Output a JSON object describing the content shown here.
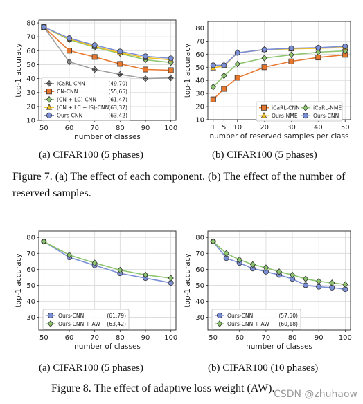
{
  "colors": {
    "icarl_cnn": "#a0a0a0",
    "cn_cnn": "#e8772e",
    "cn_lc": "#8cc56e",
    "cn_lc_is": "#f0c020",
    "ours": "#7b8fd6",
    "icarl_nme": "#8cc56e",
    "ours_nme": "#f0c020",
    "ours_aw": "#8cc56e"
  },
  "chart_data": [
    {
      "id": "a7",
      "type": "line",
      "xlabel": "number of classes",
      "ylabel": "top-1 accuracy",
      "x": [
        50,
        60,
        70,
        80,
        90,
        100
      ],
      "xticks": [
        "50",
        "60",
        "70",
        "80",
        "90",
        "100"
      ],
      "xlim": [
        48,
        102
      ],
      "ylim": [
        10,
        82
      ],
      "yticks": [
        10,
        20,
        30,
        40,
        50,
        60,
        70,
        80
      ],
      "grid": true,
      "legend_position": "bottom-left",
      "series": [
        {
          "name": "iCaRL-CNN",
          "score": "(49,70)",
          "color": "#a0a0a0",
          "marker": "plus-diamond",
          "values": [
            77,
            52,
            46.5,
            43,
            40,
            40.5
          ]
        },
        {
          "name": "CN-CNN",
          "score": "(55,65)",
          "color": "#e8772e",
          "marker": "square",
          "values": [
            77,
            60,
            55.5,
            50.5,
            46.5,
            46
          ]
        },
        {
          "name": "(CN + LC)-CNN",
          "score": "(61,47)",
          "color": "#8cc56e",
          "marker": "diamond",
          "values": [
            77,
            68,
            62.5,
            58,
            53.5,
            51.5
          ]
        },
        {
          "name": "(CN + LC + IS)-CNN",
          "score": "(63,37)",
          "color": "#f0c020",
          "marker": "triangle",
          "values": [
            77,
            68.5,
            63,
            58.5,
            55,
            53.5
          ]
        },
        {
          "name": "Ours-CNN",
          "score": "(63,42)",
          "color": "#7b8fd6",
          "marker": "circle",
          "values": [
            77,
            69,
            64,
            59.5,
            56,
            54.5
          ]
        }
      ]
    },
    {
      "id": "b7",
      "type": "line",
      "xlabel": "number of reserved samples per class",
      "ylabel": "top-1 accuracy",
      "x": [
        1,
        5,
        10,
        20,
        30,
        40,
        50
      ],
      "xticks": [
        "1",
        "5",
        "10",
        "20",
        "30",
        "40",
        "50"
      ],
      "xlim": [
        -1,
        52
      ],
      "ylim": [
        10,
        85
      ],
      "yticks": [
        10,
        20,
        30,
        40,
        50,
        60,
        70,
        80
      ],
      "grid": true,
      "legend_position": "bottom-right",
      "legend_columns": 2,
      "series": [
        {
          "name": "iCaRL-CNN",
          "color": "#e8772e",
          "marker": "square",
          "values": [
            25.5,
            33.5,
            42,
            50,
            54.5,
            57.5,
            59.5
          ]
        },
        {
          "name": "iCaRL-NME",
          "color": "#8cc56e",
          "marker": "diamond",
          "values": [
            35,
            43.5,
            52.5,
            57,
            59.5,
            61.5,
            62.5
          ]
        },
        {
          "name": "Ours-NME",
          "color": "#f0c020",
          "marker": "triangle",
          "values": [
            49.5,
            51,
            61,
            63.5,
            64,
            64.5,
            65
          ]
        },
        {
          "name": "Ours-CNN",
          "color": "#7b8fd6",
          "marker": "circle",
          "values": [
            51.5,
            51.5,
            61,
            63.5,
            64.5,
            65,
            66
          ]
        }
      ]
    },
    {
      "id": "a8",
      "type": "line",
      "xlabel": "number of classes",
      "ylabel": "top-1 accuracy",
      "x": [
        50,
        60,
        70,
        80,
        90,
        100
      ],
      "xticks": [
        "50",
        "60",
        "70",
        "80",
        "90",
        "100"
      ],
      "xlim": [
        48,
        102
      ],
      "ylim": [
        22,
        84
      ],
      "yticks": [
        30,
        40,
        50,
        60,
        70,
        80
      ],
      "grid": true,
      "legend_position": "bottom-left",
      "series": [
        {
          "name": "Ours-CNN",
          "score": "(61,79)",
          "color": "#7b8fd6",
          "marker": "circle",
          "values": [
            77.5,
            67.5,
            62.5,
            57.5,
            54.5,
            51.5
          ]
        },
        {
          "name": "Ours-CNN + AW",
          "score": "(63,42)",
          "color": "#8cc56e",
          "marker": "diamond",
          "values": [
            77.5,
            69,
            64,
            59.5,
            56.5,
            54.5
          ]
        }
      ]
    },
    {
      "id": "b8",
      "type": "line",
      "xlabel": "number of classes",
      "ylabel": "top-1 accuracy",
      "x": [
        50,
        55,
        60,
        65,
        70,
        75,
        80,
        85,
        90,
        95,
        100
      ],
      "xticks": [
        "50",
        "60",
        "70",
        "80",
        "90",
        "100"
      ],
      "xtick_values": [
        50,
        60,
        70,
        80,
        90,
        100
      ],
      "xlim": [
        48,
        102
      ],
      "ylim": [
        22,
        84
      ],
      "yticks": [
        30,
        40,
        50,
        60,
        70,
        80
      ],
      "grid": true,
      "legend_position": "bottom-left",
      "series": [
        {
          "name": "Ours-CNN",
          "score": "(57,50)",
          "color": "#7b8fd6",
          "marker": "circle",
          "values": [
            77.5,
            67,
            64,
            60.5,
            58.5,
            56.5,
            54,
            50,
            49,
            48.5,
            47.5
          ]
        },
        {
          "name": "Ours-CNN + AW",
          "score": "(60,18)",
          "color": "#8cc56e",
          "marker": "diamond",
          "values": [
            77.5,
            70,
            66,
            63,
            61,
            58.5,
            56.5,
            54,
            52.5,
            51.5,
            50.5
          ]
        }
      ]
    }
  ],
  "captions": {
    "a7": "(a)  CIFAR100 (5 phases)",
    "b7": "(b)  CIFAR100 (5 phases)",
    "figure7": "Figure 7. (a) The effect of each component.  (b) The effect of the number of reserved samples.",
    "a8": "(a)  CIFAR100 (5 phases)",
    "b8": "(b)  CIFAR100 (10 phases)",
    "figure8": "Figure 8. The effect of adaptive loss weight (AW)."
  },
  "watermark": "CSDN @zhuhaow"
}
